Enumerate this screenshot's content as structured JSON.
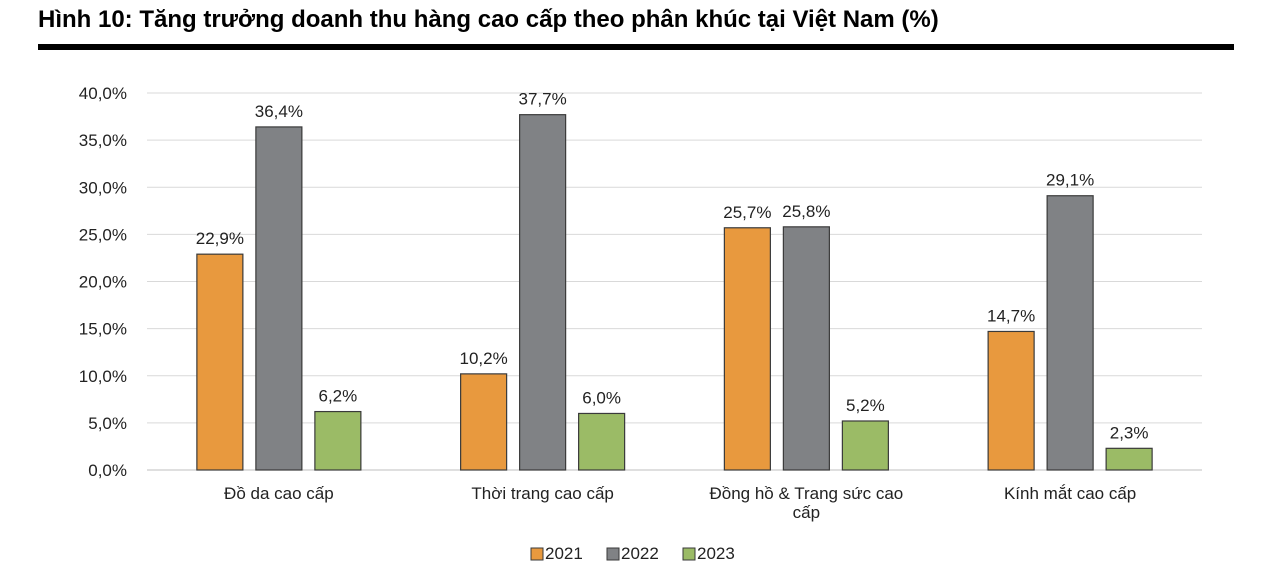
{
  "title": "Hình 10: Tăng trưởng doanh thu hàng cao cấp theo phân khúc tại Việt Nam (%)",
  "chart_data": {
    "type": "bar",
    "categories": [
      [
        "Đồ da cao cấp"
      ],
      [
        "Thời trang cao cấp"
      ],
      [
        "Đồng hồ & Trang sức cao",
        "cấp"
      ],
      [
        "Kính mắt cao cấp"
      ]
    ],
    "series": [
      {
        "name": "2021",
        "color": "#E8993E",
        "values": [
          22.9,
          10.2,
          25.7,
          14.7
        ],
        "labels": [
          "22,9%",
          "10,2%",
          "25,7%",
          "14,7%"
        ]
      },
      {
        "name": "2022",
        "color": "#808285",
        "values": [
          36.4,
          37.7,
          25.8,
          29.1
        ],
        "labels": [
          "36,4%",
          "37,7%",
          "25,8%",
          "29,1%"
        ]
      },
      {
        "name": "2023",
        "color": "#9BBB66",
        "values": [
          6.2,
          6.0,
          5.2,
          2.3
        ],
        "labels": [
          "6,2%",
          "6,0%",
          "5,2%",
          "2,3%"
        ]
      }
    ],
    "ylim": [
      0,
      40
    ],
    "yticks": [
      0,
      5,
      10,
      15,
      20,
      25,
      30,
      35,
      40
    ],
    "ytick_labels": [
      "0,0%",
      "5,0%",
      "10,0%",
      "15,0%",
      "20,0%",
      "25,0%",
      "30,0%",
      "35,0%",
      "40,0%"
    ],
    "grid": true,
    "legend": "bottom-center"
  }
}
